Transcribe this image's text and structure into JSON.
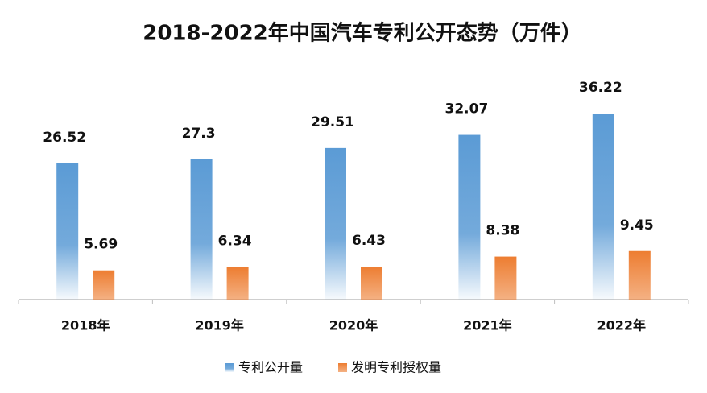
{
  "chart_data": {
    "type": "bar",
    "title": "2018-2022年中国汽车专利公开态势（万件）",
    "categories": [
      "2018年",
      "2019年",
      "2020年",
      "2021年",
      "2022年"
    ],
    "series": [
      {
        "name": "专利公开量",
        "color": "#5b9bd5",
        "values": [
          26.52,
          27.3,
          29.51,
          32.07,
          36.22
        ]
      },
      {
        "name": "发明专利授权量",
        "color": "#ed7d31",
        "values": [
          5.69,
          6.34,
          6.43,
          8.38,
          9.45
        ]
      }
    ],
    "ylim": [
      0,
      40
    ],
    "legend": "bottom"
  }
}
